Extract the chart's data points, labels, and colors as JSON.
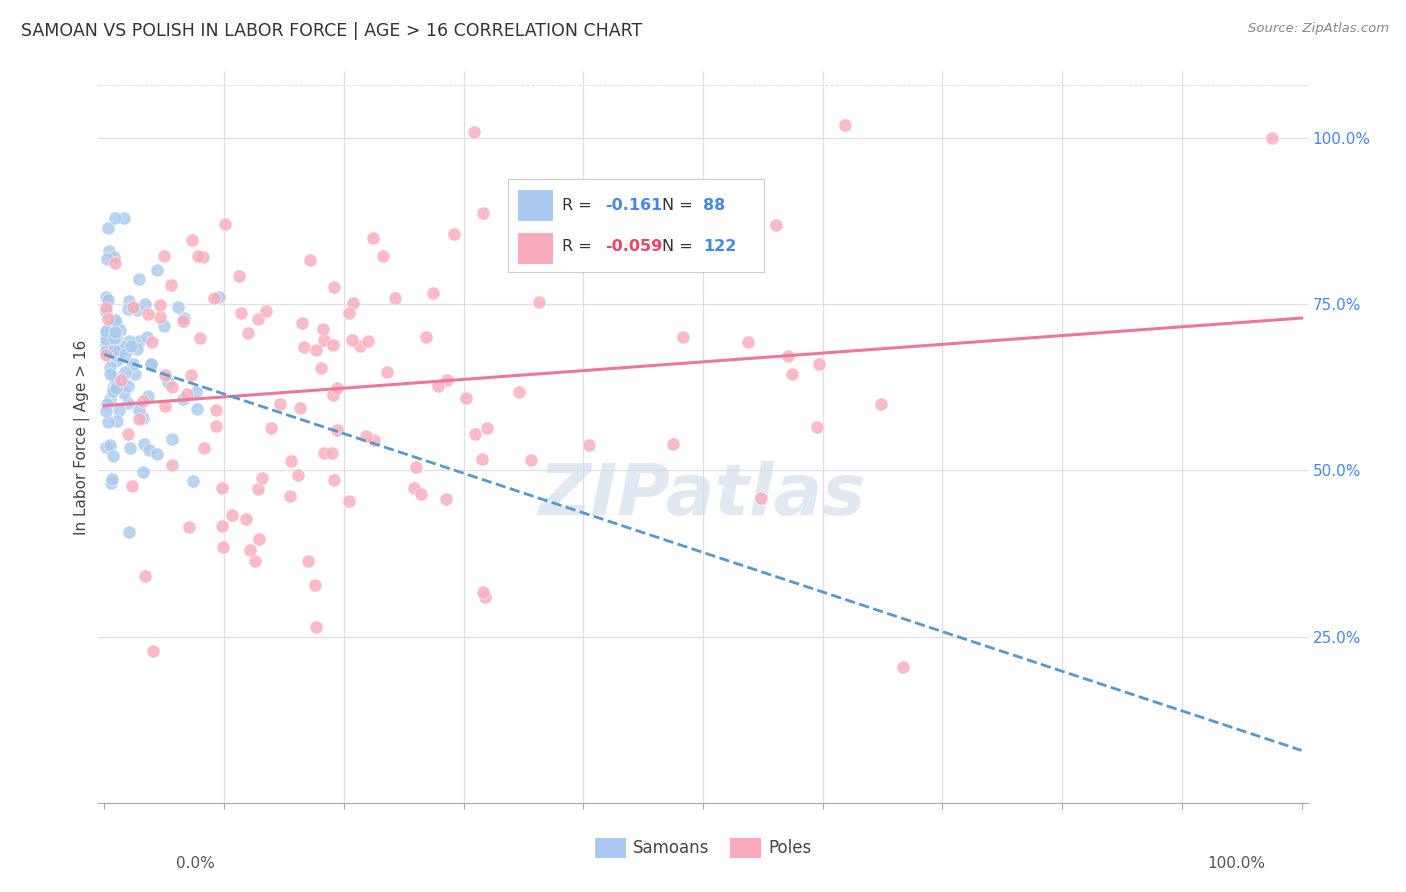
{
  "title": "SAMOAN VS POLISH IN LABOR FORCE | AGE > 16 CORRELATION CHART",
  "source": "Source: ZipAtlas.com",
  "ylabel": "In Labor Force | Age > 16",
  "legend_label1": "Samoans",
  "legend_label2": "Poles",
  "r1": -0.161,
  "n1": 88,
  "r2": -0.059,
  "n2": 122,
  "color_samoan": "#A8C8F0",
  "color_poles": "#F9AABB",
  "color_trend_samoan": "#5599CC",
  "color_trend_poles": "#EE7799",
  "background_color": "#FFFFFF",
  "watermark_text": "ZIPatlas",
  "watermark_color": "#C8D8E8",
  "grid_color": "#DDDDEE",
  "ytick_color": "#4488EE",
  "legend_r_color": "#4488EE",
  "legend_r2_color": "#EE4466",
  "legend_n_color": "#4488EE"
}
